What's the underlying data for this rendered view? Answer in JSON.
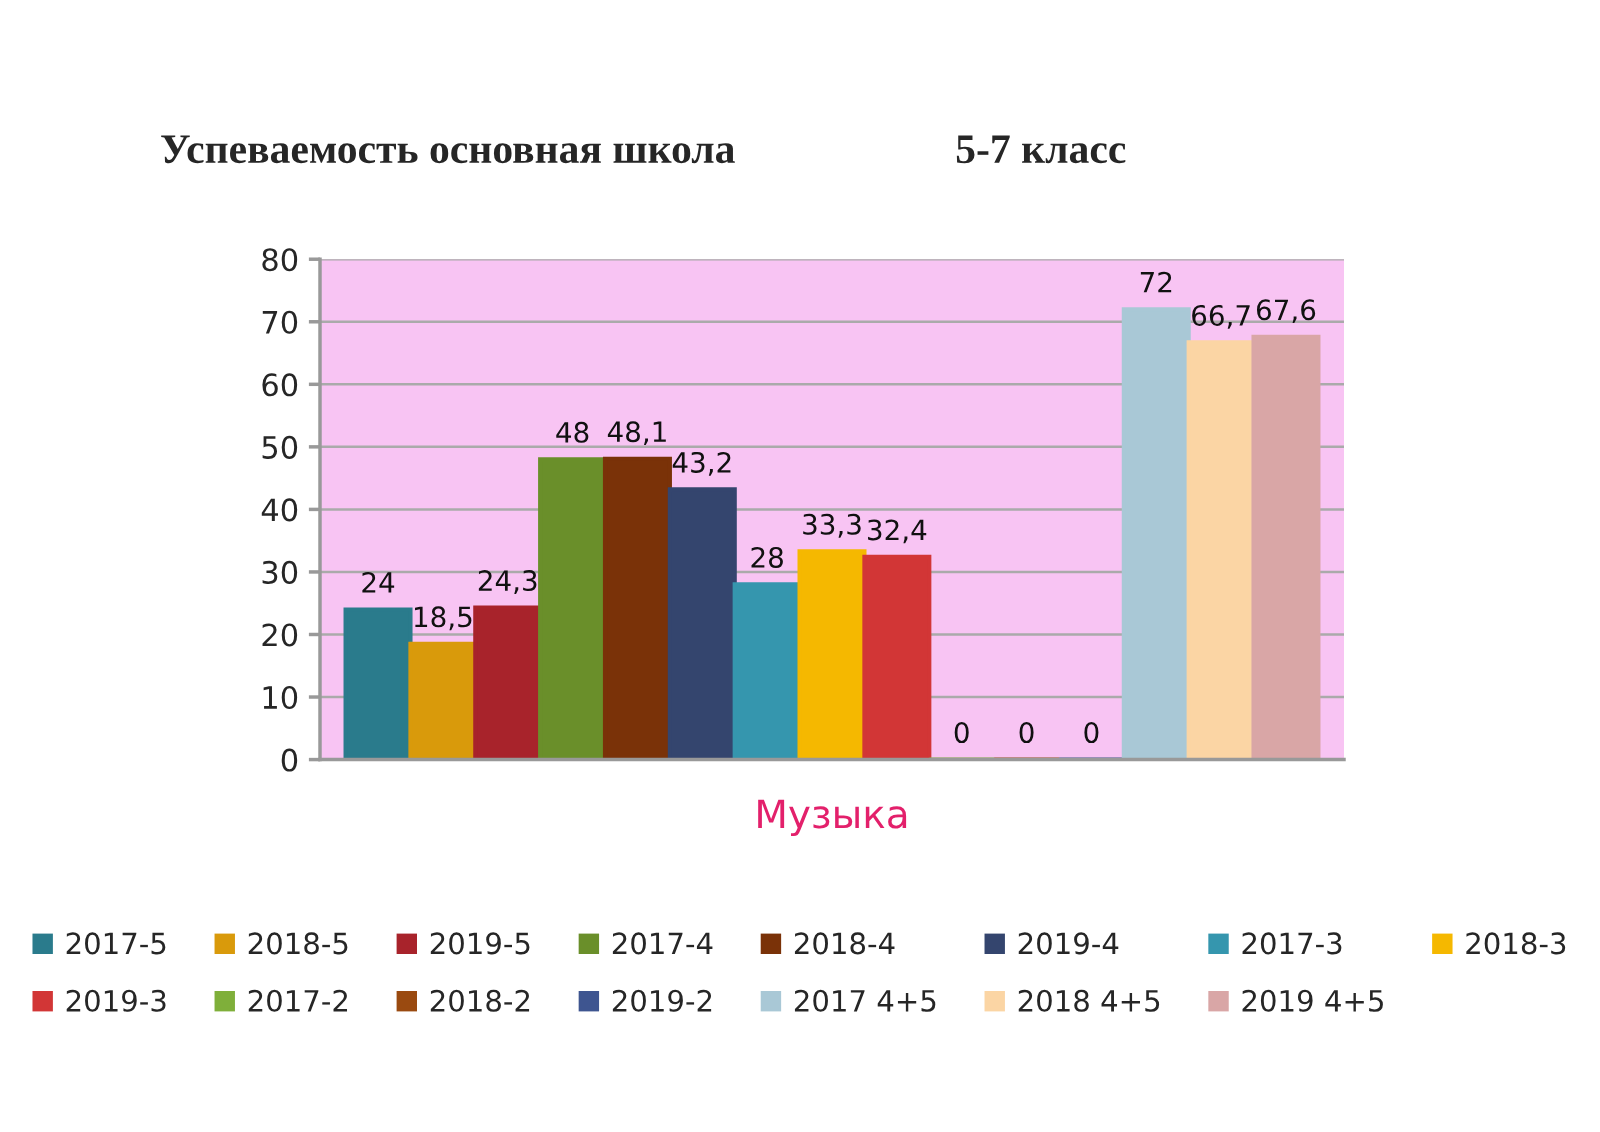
{
  "chart_data": {
    "type": "bar",
    "title": "Успеваемость основная школа",
    "subtitle": "5-7 класс",
    "categories": [
      "Музыка"
    ],
    "series": [
      {
        "name": "2017-5",
        "color": "#2a7b8c",
        "values": [
          24
        ],
        "value_labels": [
          "24"
        ]
      },
      {
        "name": "2018-5",
        "color": "#d99a0b",
        "values": [
          18.5
        ],
        "value_labels": [
          "18,5"
        ]
      },
      {
        "name": "2019-5",
        "color": "#a8232b",
        "values": [
          24.3
        ],
        "value_labels": [
          "24,3"
        ]
      },
      {
        "name": "2017-4",
        "color": "#6a8f2a",
        "values": [
          48
        ],
        "value_labels": [
          "48"
        ]
      },
      {
        "name": "2018-4",
        "color": "#7a3208",
        "values": [
          48.1
        ],
        "value_labels": [
          "48,1"
        ]
      },
      {
        "name": "2019-4",
        "color": "#34456e",
        "values": [
          43.2
        ],
        "value_labels": [
          "43,2"
        ]
      },
      {
        "name": "2017-3",
        "color": "#3596ae",
        "values": [
          28
        ],
        "value_labels": [
          "28"
        ]
      },
      {
        "name": "2018-3",
        "color": "#f5b800",
        "values": [
          33.3
        ],
        "value_labels": [
          "33,3"
        ]
      },
      {
        "name": "2019-3",
        "color": "#d23636",
        "values": [
          32.4
        ],
        "value_labels": [
          "32,4"
        ]
      },
      {
        "name": "2017-2",
        "color": "#7faf3a",
        "values": [
          0
        ],
        "value_labels": [
          "0"
        ]
      },
      {
        "name": "2018-2",
        "color": "#9a4a10",
        "values": [
          0
        ],
        "value_labels": [
          "0"
        ]
      },
      {
        "name": "2019-2",
        "color": "#3e5590",
        "values": [
          0
        ],
        "value_labels": [
          "0"
        ]
      },
      {
        "name": "2017 4+5",
        "color": "#a9c8d6",
        "values": [
          72
        ],
        "value_labels": [
          "72"
        ]
      },
      {
        "name": "2018 4+5",
        "color": "#fbd5a4",
        "values": [
          66.7
        ],
        "value_labels": [
          "66,7"
        ]
      },
      {
        "name": "2019 4+5",
        "color": "#d9a6a6",
        "values": [
          67.6
        ],
        "value_labels": [
          "67,6"
        ]
      }
    ],
    "ylim": [
      0,
      80
    ],
    "yticks": [
      0,
      10,
      20,
      30,
      40,
      50,
      60,
      70,
      80
    ],
    "grid": "y",
    "legend": "bottom"
  }
}
